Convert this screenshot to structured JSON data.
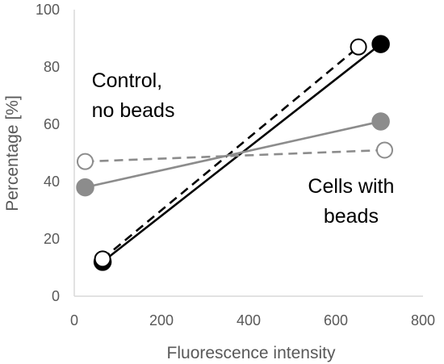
{
  "chart_data": {
    "type": "scatter",
    "title": "",
    "xlabel": "Fluorescence intensity",
    "ylabel": "Percentage [%]",
    "xlim": [
      0,
      800
    ],
    "ylim": [
      0,
      100
    ],
    "x_ticks": [
      0,
      200,
      400,
      600,
      800
    ],
    "y_ticks": [
      0,
      20,
      40,
      60,
      80,
      100
    ],
    "grid": false,
    "legend": "none",
    "series": [
      {
        "color": "#000000",
        "marker": "filled-circle",
        "line": "solid",
        "points": [
          {
            "x": 65,
            "y": 12
          },
          {
            "x": 703,
            "y": 88
          }
        ]
      },
      {
        "color": "#000000",
        "marker": "open-circle",
        "line": "dashed",
        "points": [
          {
            "x": 65,
            "y": 13
          },
          {
            "x": 652,
            "y": 87
          }
        ]
      },
      {
        "color": "#8c8c8c",
        "marker": "filled-circle",
        "line": "solid",
        "points": [
          {
            "x": 25,
            "y": 38
          },
          {
            "x": 703,
            "y": 61
          }
        ]
      },
      {
        "color": "#8c8c8c",
        "marker": "open-circle",
        "line": "dashed",
        "points": [
          {
            "x": 25,
            "y": 47
          },
          {
            "x": 712,
            "y": 51
          }
        ]
      }
    ],
    "annotations": [
      {
        "lines": [
          "Control,",
          "no beads"
        ],
        "anchor": "left",
        "x": 40,
        "y": 73
      },
      {
        "lines": [
          "Cells with",
          "beads"
        ],
        "anchor": "center",
        "x": 635,
        "y": 36
      }
    ]
  }
}
